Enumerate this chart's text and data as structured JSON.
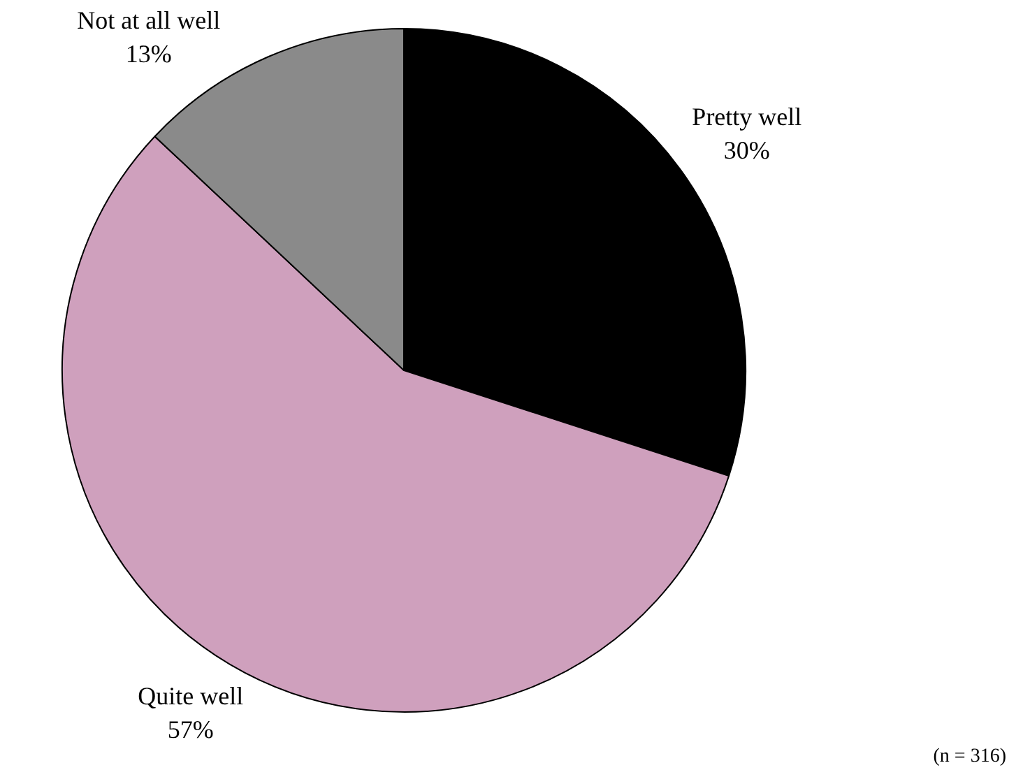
{
  "chart_data": {
    "type": "pie",
    "categories": [
      "Pretty well",
      "Quite well",
      "Not at all well"
    ],
    "values": [
      30,
      57,
      13
    ],
    "colors": [
      "#000000",
      "#cfa0bd",
      "#8a8a8a"
    ],
    "value_labels": [
      "30%",
      "57%",
      "13%"
    ],
    "legend": false,
    "annotations": [
      "(n = 316)"
    ]
  }
}
